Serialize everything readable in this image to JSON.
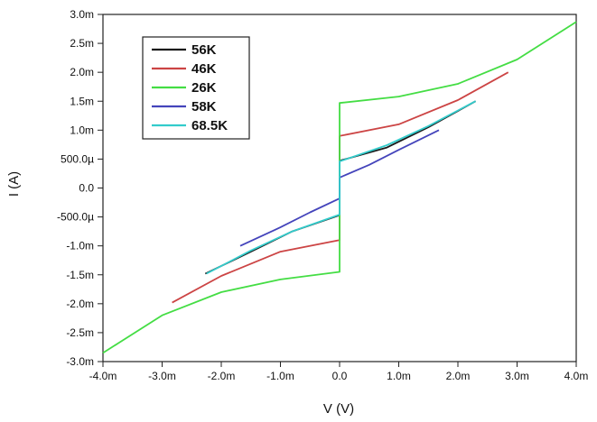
{
  "chart_data": {
    "type": "line",
    "title": "",
    "xlabel": "V (V)",
    "ylabel": "I (A)",
    "xlim": [
      -0.004,
      0.004
    ],
    "ylim": [
      -0.003,
      0.003
    ],
    "grid": false,
    "legend_position": "top-left",
    "x_ticks": [
      -0.004,
      -0.003,
      -0.002,
      -0.001,
      0.0,
      0.001,
      0.002,
      0.003,
      0.004
    ],
    "x_tick_labels": [
      "-4.0m",
      "-3.0m",
      "-2.0m",
      "-1.0m",
      "0.0",
      "1.0m",
      "2.0m",
      "3.0m",
      "4.0m"
    ],
    "y_ticks": [
      -0.003,
      -0.0025,
      -0.002,
      -0.0015,
      -0.001,
      -0.0005,
      0.0,
      0.0005,
      0.001,
      0.0015,
      0.002,
      0.0025,
      0.003
    ],
    "y_tick_labels": [
      "-3.0m",
      "-2.5m",
      "-2.0m",
      "-1.5m",
      "-1.0m",
      "-500.0µ",
      "0.0",
      "500.0µ",
      "1.0m",
      "1.5m",
      "2.0m",
      "2.5m",
      "3.0m"
    ],
    "series": [
      {
        "name": "56K",
        "color": "#1a1a1a",
        "points": [
          [
            -0.00227,
            -0.00148
          ],
          [
            -0.0015,
            -0.0011
          ],
          [
            -0.0008,
            -0.00075
          ],
          [
            0.0,
            -0.00047
          ],
          [
            0.0,
            0.00047
          ],
          [
            0.0008,
            0.0007
          ],
          [
            0.0015,
            0.00105
          ],
          [
            0.0023,
            0.0015
          ]
        ]
      },
      {
        "name": "46K",
        "color": "#cc4444",
        "points": [
          [
            -0.00283,
            -0.00198
          ],
          [
            -0.002,
            -0.00152
          ],
          [
            -0.001,
            -0.0011
          ],
          [
            0.0,
            -0.0009
          ],
          [
            0.0,
            0.0009
          ],
          [
            0.001,
            0.0011
          ],
          [
            0.002,
            0.00152
          ],
          [
            0.00285,
            0.002
          ]
        ]
      },
      {
        "name": "26K",
        "color": "#44dd44",
        "points": [
          [
            -0.004,
            -0.00285
          ],
          [
            -0.003,
            -0.0022
          ],
          [
            -0.002,
            -0.0018
          ],
          [
            -0.001,
            -0.00158
          ],
          [
            0.0,
            -0.00145
          ],
          [
            0.0,
            0.00147
          ],
          [
            0.001,
            0.00158
          ],
          [
            0.002,
            0.0018
          ],
          [
            0.003,
            0.00222
          ],
          [
            0.004,
            0.00287
          ]
        ]
      },
      {
        "name": "58K",
        "color": "#4444bb",
        "points": [
          [
            -0.00168,
            -0.001
          ],
          [
            -0.001,
            -0.00068
          ],
          [
            -0.0005,
            -0.00042
          ],
          [
            0.0,
            -0.00018
          ],
          [
            0.0,
            0.00018
          ],
          [
            0.0005,
            0.0004
          ],
          [
            0.001,
            0.00066
          ],
          [
            0.00168,
            0.001
          ]
        ]
      },
      {
        "name": "68.5K",
        "color": "#33cccc",
        "points": [
          [
            -0.00225,
            -0.00148
          ],
          [
            -0.0015,
            -0.00108
          ],
          [
            -0.0008,
            -0.00075
          ],
          [
            0.0,
            -0.00046
          ],
          [
            0.0,
            0.00046
          ],
          [
            0.0008,
            0.00074
          ],
          [
            0.0015,
            0.00107
          ],
          [
            0.0023,
            0.0015
          ]
        ]
      }
    ]
  }
}
